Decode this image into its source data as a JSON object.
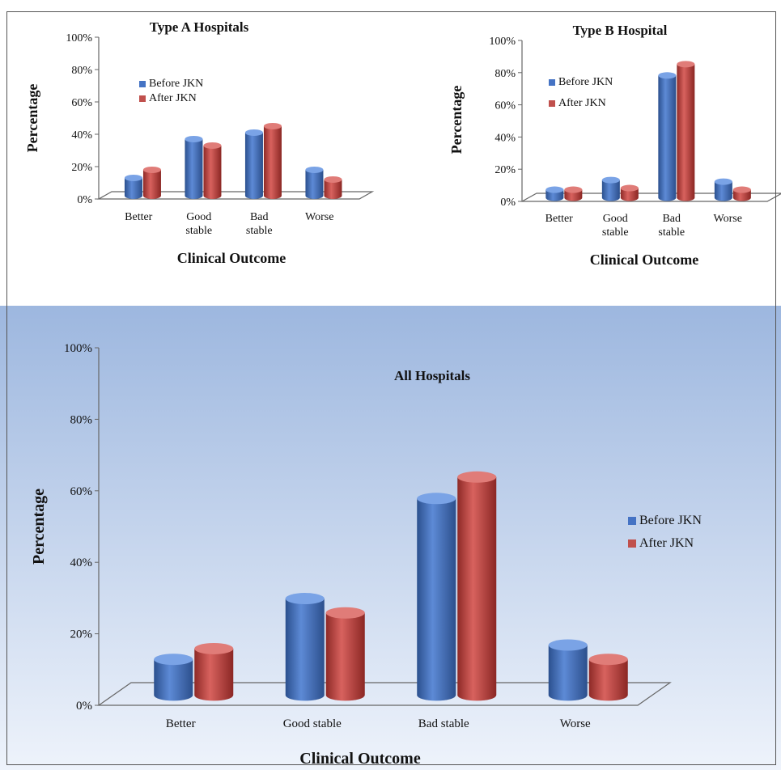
{
  "chart_data": [
    {
      "type": "bar",
      "title": "Type A Hospitals",
      "xlabel": "Clinical Outcome",
      "ylabel": "Percentage",
      "categories": [
        [
          "Better"
        ],
        [
          "Good",
          "stable"
        ],
        [
          "Bad",
          "stable"
        ],
        [
          "Worse"
        ]
      ],
      "ylim": [
        0,
        100
      ],
      "yticks": [
        "0%",
        "20%",
        "40%",
        "60%",
        "80%",
        "100%"
      ],
      "series": [
        {
          "name": "Before  JKN",
          "values": [
            11,
            35,
            39,
            16
          ]
        },
        {
          "name": "After JKN",
          "values": [
            16,
            31,
            43,
            10
          ]
        }
      ],
      "legend_position": "top-left"
    },
    {
      "type": "bar",
      "title": "Type B Hospital",
      "xlabel": "Clinical Outcome",
      "ylabel": "Percentage",
      "categories": [
        [
          "Better"
        ],
        [
          "Good",
          "stable"
        ],
        [
          "Bad",
          "stable"
        ],
        [
          "Worse"
        ]
      ],
      "ylim": [
        0,
        100
      ],
      "yticks": [
        "0%",
        "20%",
        "40%",
        "60%",
        "80%",
        "100%"
      ],
      "series": [
        {
          "name": "Before  JKN",
          "values": [
            5,
            11,
            76,
            10
          ]
        },
        {
          "name": "After JKN",
          "values": [
            5,
            6,
            83,
            5
          ]
        }
      ],
      "legend_position": "top-left"
    },
    {
      "type": "bar",
      "title": "All Hospitals",
      "xlabel": "Clinical Outcome",
      "ylabel": "Percentage",
      "categories": [
        [
          "Better"
        ],
        [
          "Good stable"
        ],
        [
          "Bad stable"
        ],
        [
          "Worse"
        ]
      ],
      "ylim": [
        0,
        100
      ],
      "yticks": [
        "0%",
        "20%",
        "40%",
        "60%",
        "80%",
        "100%"
      ],
      "series": [
        {
          "name": "Before  JKN",
          "values": [
            10,
            27,
            55,
            14
          ]
        },
        {
          "name": "After JKN",
          "values": [
            13,
            23,
            61,
            10
          ]
        }
      ],
      "legend_position": "right"
    }
  ],
  "colors": {
    "before": "#4573c4",
    "after": "#c0504d",
    "background_top": "#9db7df",
    "background_bottom": "#eef3fb"
  }
}
